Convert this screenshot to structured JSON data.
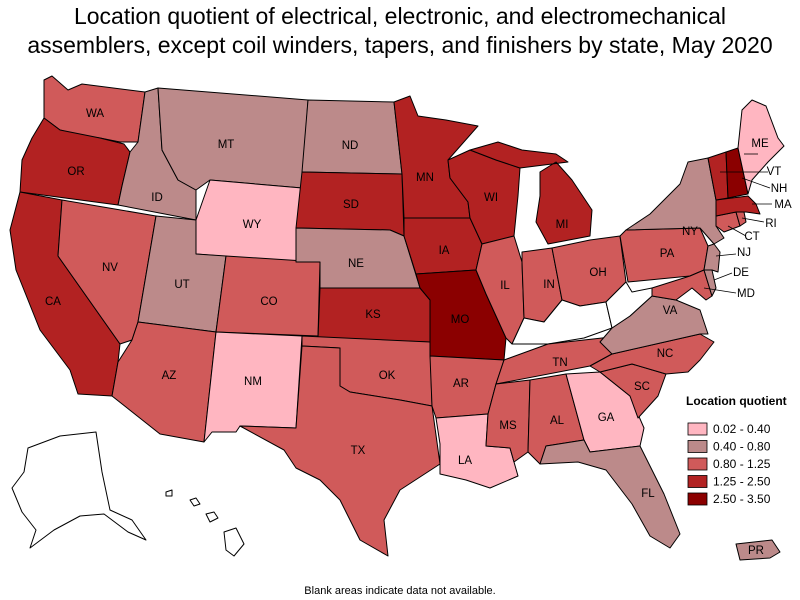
{
  "title_line1": "Location quotient of electrical, electronic, and electromechanical",
  "title_line2": "assemblers, except coil winders, tapers, and finishers by state, May 2020",
  "footnote": "Blank areas indicate data not available.",
  "legend": {
    "title": "Location quotient",
    "bins": [
      {
        "label": "0.02 - 0.40",
        "color": "#ffb6c1"
      },
      {
        "label": "0.40 - 0.80",
        "color": "#bc8a8a"
      },
      {
        "label": "0.80 - 1.25",
        "color": "#d05a5a"
      },
      {
        "label": "1.25 - 2.50",
        "color": "#b22222"
      },
      {
        "label": "2.50 - 3.50",
        "color": "#8b0000"
      }
    ]
  },
  "states": {
    "WA": {
      "label": "WA",
      "bin": 2
    },
    "OR": {
      "label": "OR",
      "bin": 3
    },
    "CA": {
      "label": "CA",
      "bin": 3
    },
    "ID": {
      "label": "ID",
      "bin": 1
    },
    "NV": {
      "label": "NV",
      "bin": 2
    },
    "MT": {
      "label": "MT",
      "bin": 1
    },
    "WY": {
      "label": "WY",
      "bin": 0
    },
    "UT": {
      "label": "UT",
      "bin": 1
    },
    "AZ": {
      "label": "AZ",
      "bin": 2
    },
    "CO": {
      "label": "CO",
      "bin": 2
    },
    "NM": {
      "label": "NM",
      "bin": 0
    },
    "ND": {
      "label": "ND",
      "bin": 1
    },
    "SD": {
      "label": "SD",
      "bin": 3
    },
    "NE": {
      "label": "NE",
      "bin": 1
    },
    "KS": {
      "label": "KS",
      "bin": 3
    },
    "OK": {
      "label": "OK",
      "bin": 2
    },
    "TX": {
      "label": "TX",
      "bin": 2
    },
    "MN": {
      "label": "MN",
      "bin": 3
    },
    "IA": {
      "label": "IA",
      "bin": 3
    },
    "MO": {
      "label": "MO",
      "bin": 4
    },
    "AR": {
      "label": "AR",
      "bin": 2
    },
    "LA": {
      "label": "LA",
      "bin": 0
    },
    "WI": {
      "label": "WI",
      "bin": 3
    },
    "IL": {
      "label": "IL",
      "bin": 2
    },
    "MI": {
      "label": "MI",
      "bin": 3
    },
    "IN": {
      "label": "IN",
      "bin": 2
    },
    "OH": {
      "label": "OH",
      "bin": 2
    },
    "KY": {
      "label": "",
      "bin": null
    },
    "TN": {
      "label": "TN",
      "bin": 2
    },
    "MS": {
      "label": "MS",
      "bin": 2
    },
    "AL": {
      "label": "AL",
      "bin": 2
    },
    "GA": {
      "label": "GA",
      "bin": 0
    },
    "FL": {
      "label": "FL",
      "bin": 1
    },
    "SC": {
      "label": "SC",
      "bin": 2
    },
    "NC": {
      "label": "NC",
      "bin": 2
    },
    "VA": {
      "label": "VA",
      "bin": 1
    },
    "WV": {
      "label": "",
      "bin": null
    },
    "PA": {
      "label": "PA",
      "bin": 2
    },
    "NY": {
      "label": "NY",
      "bin": 1
    },
    "MD": {
      "label": "MD",
      "bin": 2
    },
    "DE": {
      "label": "DE",
      "bin": 1
    },
    "NJ": {
      "label": "NJ",
      "bin": 1
    },
    "CT": {
      "label": "CT",
      "bin": 2
    },
    "RI": {
      "label": "RI",
      "bin": 2
    },
    "MA": {
      "label": "MA",
      "bin": 3
    },
    "VT": {
      "label": "VT",
      "bin": 3
    },
    "NH": {
      "label": "NH",
      "bin": 4
    },
    "ME": {
      "label": "ME",
      "bin": 0
    },
    "AK": {
      "label": "",
      "bin": null
    },
    "HI": {
      "label": "",
      "bin": null
    },
    "PR": {
      "label": "PR",
      "bin": 1
    }
  }
}
